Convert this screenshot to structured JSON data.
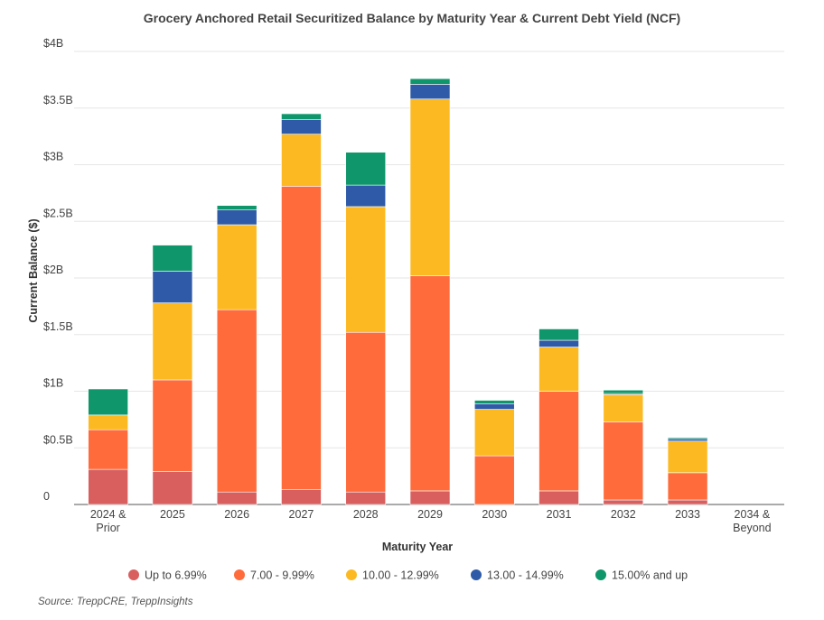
{
  "chart_data": {
    "type": "bar",
    "stacked": true,
    "title": "Grocery Anchored Retail Securitized Balance by Maturity Year & Current Debt Yield (NCF)",
    "xlabel": "Maturity Year",
    "ylabel": "Current Balance ($)",
    "ylim": [
      0,
      4
    ],
    "yticks": [
      0,
      0.5,
      1,
      1.5,
      2,
      2.5,
      3,
      3.5,
      4
    ],
    "ytick_labels": [
      "0",
      "$0.5B",
      "$1B",
      "$1.5B",
      "$2B",
      "$2.5B",
      "$3B",
      "$3.5B",
      "$4B"
    ],
    "categories": [
      "2024 & Prior",
      "2025",
      "2026",
      "2027",
      "2028",
      "2029",
      "2030",
      "2031",
      "2032",
      "2033",
      "2034 & Beyond"
    ],
    "category_lines": [
      [
        "2024 &",
        "Prior"
      ],
      [
        "2025"
      ],
      [
        "2026"
      ],
      [
        "2027"
      ],
      [
        "2028"
      ],
      [
        "2029"
      ],
      [
        "2030"
      ],
      [
        "2031"
      ],
      [
        "2032"
      ],
      [
        "2033"
      ],
      [
        "2034 &",
        "Beyond"
      ]
    ],
    "series": [
      {
        "name": "Up to 6.99%",
        "color": "#d95f5f",
        "values": [
          0.31,
          0.29,
          0.11,
          0.13,
          0.11,
          0.12,
          0.0,
          0.12,
          0.04,
          0.04,
          0.0
        ]
      },
      {
        "name": "7.00 - 9.99%",
        "color": "#ff6b3b",
        "values": [
          0.35,
          0.81,
          1.61,
          2.68,
          1.41,
          1.9,
          0.43,
          0.88,
          0.69,
          0.24,
          0.0
        ]
      },
      {
        "name": "10.00 - 12.99%",
        "color": "#fdb921",
        "values": [
          0.13,
          0.68,
          0.75,
          0.46,
          1.11,
          1.56,
          0.41,
          0.39,
          0.24,
          0.28,
          0.0
        ]
      },
      {
        "name": "13.00 - 14.99%",
        "color": "#2e5aa7",
        "values": [
          0.0,
          0.28,
          0.13,
          0.13,
          0.19,
          0.13,
          0.05,
          0.06,
          0.01,
          0.02,
          0.0
        ]
      },
      {
        "name": "15.00% and up",
        "color": "#0f966b",
        "values": [
          0.23,
          0.23,
          0.04,
          0.05,
          0.29,
          0.05,
          0.03,
          0.1,
          0.03,
          0.01,
          0.0
        ]
      }
    ],
    "legend": "bottom",
    "grid": true
  },
  "source": "Source: TreppCRE, TreppInsights"
}
